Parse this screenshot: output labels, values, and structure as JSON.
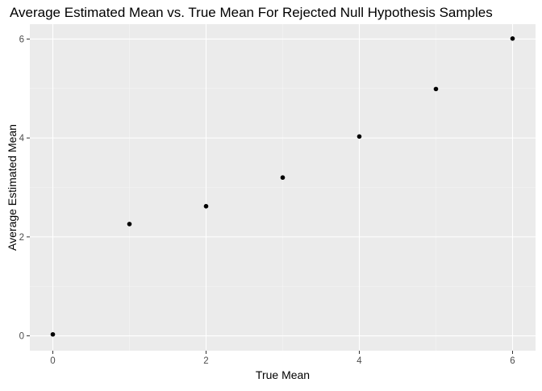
{
  "chart_data": {
    "type": "scatter",
    "title": "Average Estimated Mean vs. True Mean For Rejected Null Hypothesis Samples",
    "xlabel": "True Mean",
    "ylabel": "Average Estimated Mean",
    "x": [
      0,
      1,
      2,
      3,
      4,
      5,
      6
    ],
    "y": [
      0.03,
      2.26,
      2.62,
      3.2,
      4.03,
      4.99,
      6.01
    ],
    "xlim": [
      -0.3,
      6.3
    ],
    "ylim": [
      -0.3,
      6.3
    ],
    "xticks": [
      0,
      2,
      4,
      6
    ],
    "yticks": [
      0,
      2,
      4,
      6
    ],
    "xtick_labels": [
      "0",
      "2",
      "4",
      "6"
    ],
    "ytick_labels": [
      "0",
      "2",
      "4",
      "6"
    ],
    "grid": true,
    "colors": {
      "panel_background": "#ebebeb",
      "grid_major": "#ffffff",
      "grid_minor": "#f5f5f5",
      "point": "#000000",
      "tick": "#333333"
    }
  }
}
